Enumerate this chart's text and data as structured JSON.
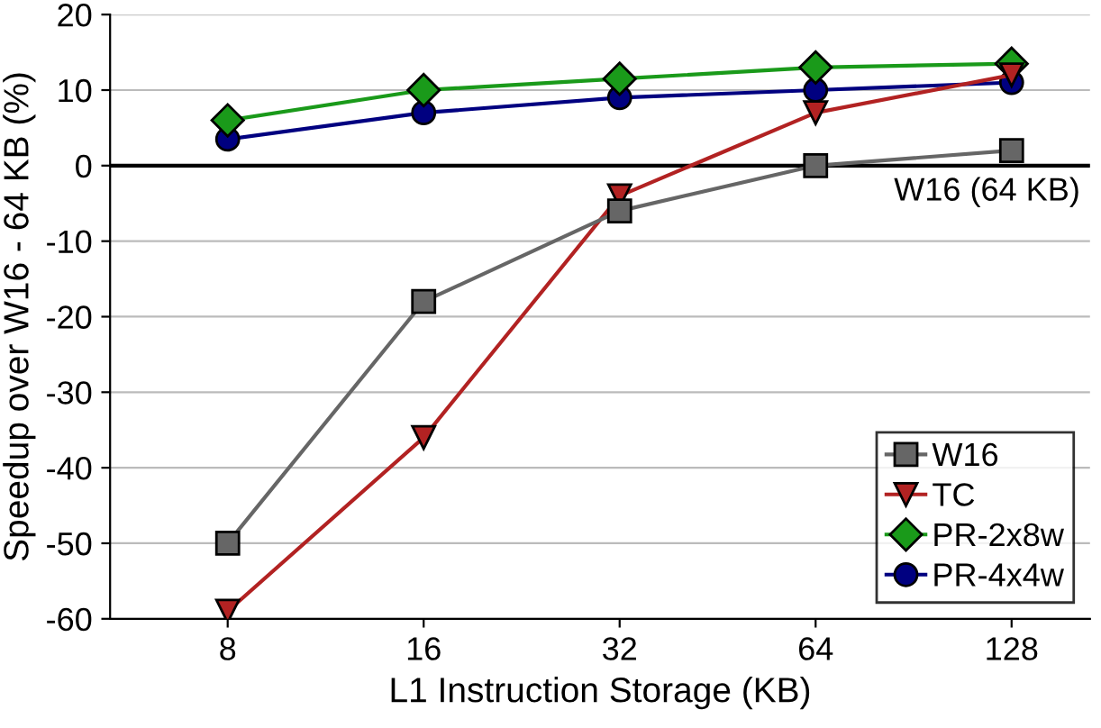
{
  "chart_data": {
    "type": "line",
    "xlabel": "L1 Instruction Storage (KB)",
    "ylabel": "Speedup over W16 - 64 KB (%)",
    "categories": [
      "8",
      "16",
      "32",
      "64",
      "128"
    ],
    "series": [
      {
        "name": "W16",
        "color": "#666666",
        "marker": "square",
        "values": [
          -50,
          -18,
          -6,
          0,
          2
        ]
      },
      {
        "name": "TC",
        "color": "#b22222",
        "marker": "triangle",
        "values": [
          -59,
          -36,
          -4,
          7,
          12
        ]
      },
      {
        "name": "PR-2x8w",
        "color": "#1a9a1a",
        "marker": "diamond",
        "values": [
          6,
          10,
          11.5,
          13,
          13.5
        ]
      },
      {
        "name": "PR-4x4w",
        "color": "#000080",
        "marker": "circle",
        "values": [
          3.5,
          7,
          9,
          10,
          11
        ]
      }
    ],
    "ylim": [
      -60,
      20
    ],
    "yticks": [
      -60,
      -50,
      -40,
      -30,
      -20,
      -10,
      0,
      10,
      20
    ],
    "ref_lines": [
      {
        "axis": "y",
        "value": 0,
        "label": "W16 (64 KB)",
        "color": "#000000"
      }
    ],
    "grid": "y",
    "legend": "bottom right",
    "line_style": "solid"
  }
}
